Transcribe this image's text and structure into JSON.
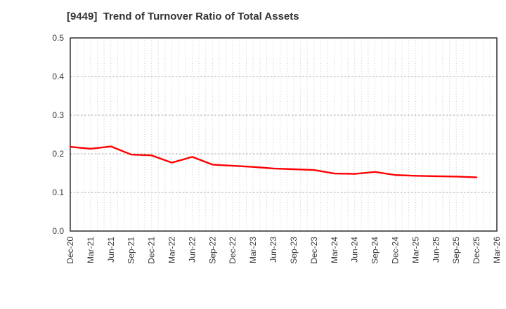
{
  "title": "[9449]  Trend of Turnover Ratio of Total Assets",
  "colors": {
    "line": "#ff0000",
    "frame": "#3c3c3c",
    "grid_major": "#a8a8a8",
    "grid_minor": "#c9c9c9",
    "text": "#3a3a3a"
  },
  "chart_data": {
    "type": "line",
    "title": "[9449]  Trend of Turnover Ratio of Total Assets",
    "x_tick_labels": [
      "Dec-20",
      "Mar-21",
      "Jun-21",
      "Sep-21",
      "Dec-21",
      "Mar-22",
      "Jun-22",
      "Sep-22",
      "Dec-22",
      "Mar-23",
      "Jun-23",
      "Sep-23",
      "Dec-23",
      "Mar-24",
      "Jun-24",
      "Sep-24",
      "Dec-24",
      "Mar-25",
      "Jun-25",
      "Sep-25",
      "Dec-25",
      "Mar-26"
    ],
    "x": [
      "Dec-20",
      "Mar-21",
      "Jun-21",
      "Sep-21",
      "Dec-21",
      "Mar-22",
      "Jun-22",
      "Sep-22",
      "Dec-22",
      "Mar-23",
      "Jun-23",
      "Sep-23",
      "Dec-23",
      "Mar-24",
      "Jun-24",
      "Sep-24",
      "Dec-24",
      "Mar-25",
      "Jun-25",
      "Sep-25",
      "Dec-25"
    ],
    "values": [
      0.218,
      0.213,
      0.219,
      0.198,
      0.196,
      0.177,
      0.192,
      0.172,
      0.169,
      0.166,
      0.162,
      0.16,
      0.158,
      0.149,
      0.148,
      0.153,
      0.145,
      0.143,
      0.142,
      0.141,
      0.139
    ],
    "ylim": [
      0.0,
      0.5
    ],
    "y_ticks": [
      0.0,
      0.1,
      0.2,
      0.3,
      0.4,
      0.5
    ],
    "x_minor_grid": "monthly",
    "grid": true,
    "legend": false
  }
}
